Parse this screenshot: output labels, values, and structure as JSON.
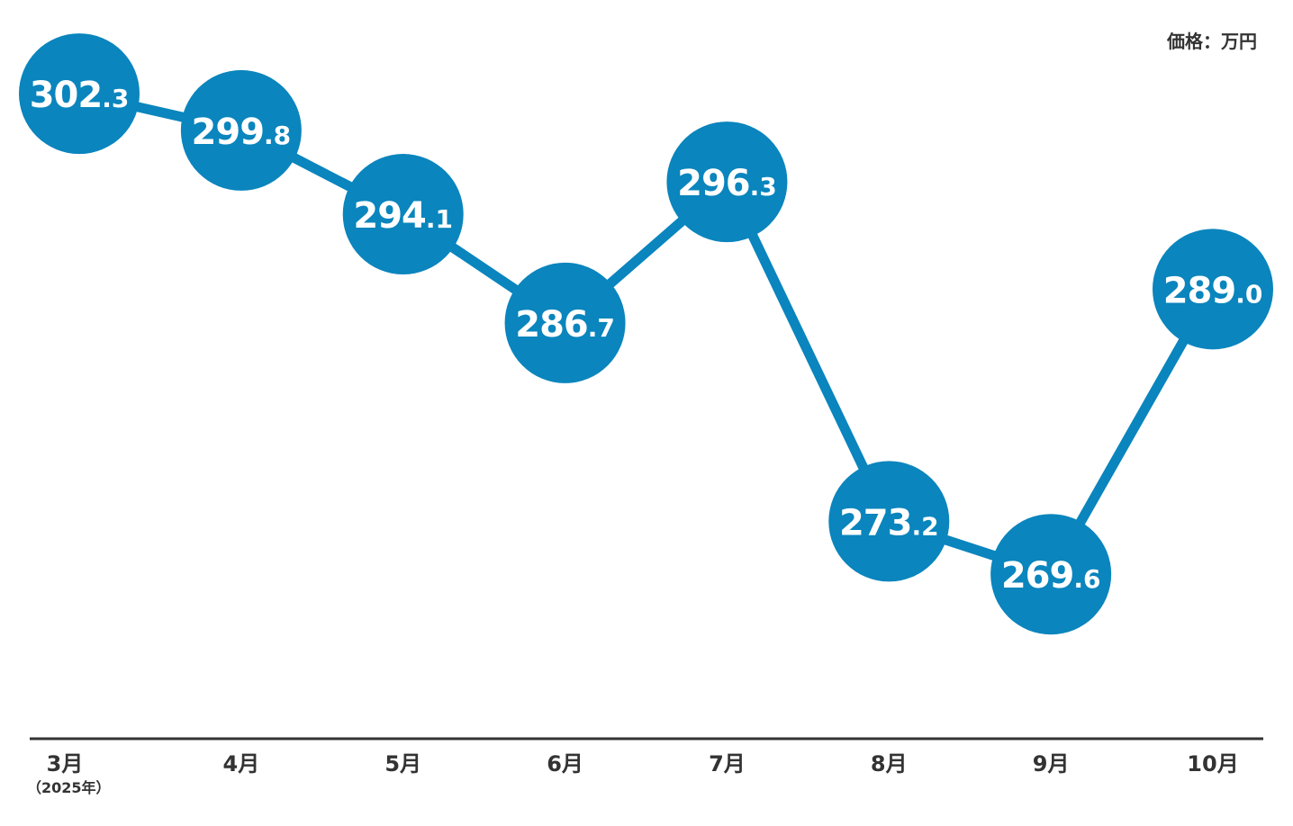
{
  "chart_data": {
    "type": "line",
    "unit_label": "価格：万円",
    "categories": [
      "3月",
      "4月",
      "5月",
      "6月",
      "7月",
      "8月",
      "9月",
      "10月"
    ],
    "first_category_note": "（2025年）",
    "series": [
      {
        "values": [
          302.3,
          299.8,
          294.1,
          286.7,
          296.3,
          273.2,
          269.6,
          289.0
        ]
      }
    ],
    "value_labels": [
      {
        "int": "302",
        "dec": ".3"
      },
      {
        "int": "299",
        "dec": ".8"
      },
      {
        "int": "294",
        "dec": ".1"
      },
      {
        "int": "286",
        "dec": ".7"
      },
      {
        "int": "296",
        "dec": ".3"
      },
      {
        "int": "273",
        "dec": ".2"
      },
      {
        "int": "269",
        "dec": ".6"
      },
      {
        "int": "289",
        "dec": ".0"
      }
    ],
    "ylim": [
      260,
      305
    ],
    "grid": false,
    "colors": {
      "marker": "#0a85bd",
      "line": "#0a85bd",
      "label_text": "#ffffff",
      "axis": "#333333",
      "tick_text": "#333333"
    }
  }
}
